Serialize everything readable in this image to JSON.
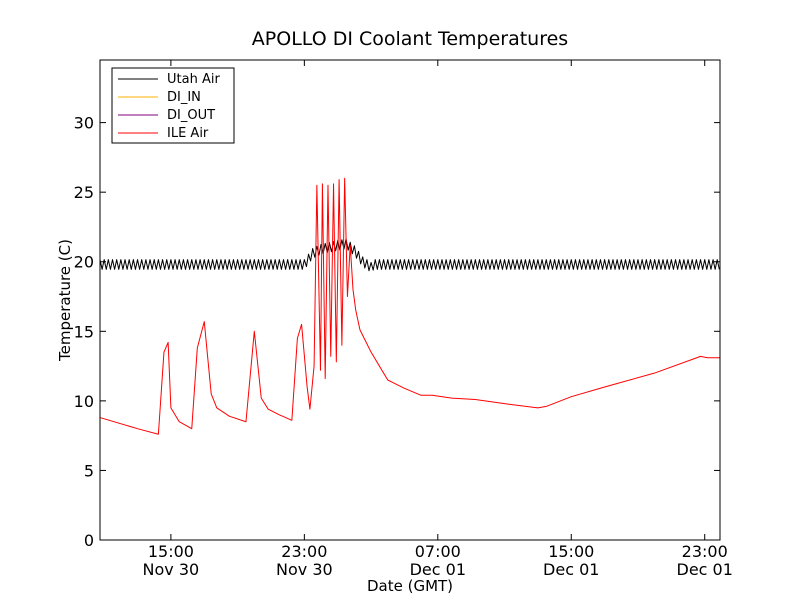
{
  "chart_data": {
    "type": "line",
    "title": "APOLLO DI Coolant Temperatures",
    "xlabel": "Date (GMT)",
    "ylabel": "Temperature (C)",
    "xlim": [
      "2014-11-30T10:45",
      "2014-12-01T23:55"
    ],
    "ylim": [
      0,
      34.5
    ],
    "yticks": [
      0,
      5,
      10,
      15,
      20,
      25,
      30
    ],
    "xticks": [
      {
        "t": "2014-11-30T15:00",
        "time": "15:00",
        "date": "Nov 30"
      },
      {
        "t": "2014-11-30T23:00",
        "time": "23:00",
        "date": "Nov 30"
      },
      {
        "t": "2014-12-01T07:00",
        "time": "07:00",
        "date": "Dec 01"
      },
      {
        "t": "2014-12-01T15:00",
        "time": "15:00",
        "date": "Dec 01"
      },
      {
        "t": "2014-12-01T23:00",
        "time": "23:00",
        "date": "Dec 01"
      }
    ],
    "legend_position": "top-left",
    "grid": false,
    "series": [
      {
        "name": "Utah Air",
        "color": "#000000",
        "style": "oscillating",
        "oscillation_amplitude": 0.35,
        "oscillation_period_hours": 0.25,
        "x": [
          "2014-11-30T10:45",
          "2014-11-30T23:00",
          "2014-11-30T23:30",
          "2014-12-01T00:00",
          "2014-12-01T01:30",
          "2014-12-01T02:00",
          "2014-12-01T02:30",
          "2014-12-01T03:00",
          "2014-12-01T03:10",
          "2014-12-01T23:55"
        ],
        "y": [
          19.8,
          19.8,
          20.6,
          20.9,
          21.3,
          20.8,
          20.0,
          19.6,
          19.8,
          19.8
        ]
      },
      {
        "name": "DI_IN",
        "color": "#ffb000",
        "x": [],
        "y": []
      },
      {
        "name": "DI_OUT",
        "color": "#800080",
        "x": [],
        "y": []
      },
      {
        "name": "ILE Air",
        "color": "#ff0000",
        "x": [
          "2014-11-30T10:45",
          "2014-11-30T13:00",
          "2014-11-30T14:15",
          "2014-11-30T14:35",
          "2014-11-30T14:50",
          "2014-11-30T15:00",
          "2014-11-30T15:30",
          "2014-11-30T16:15",
          "2014-11-30T16:35",
          "2014-11-30T17:00",
          "2014-11-30T17:25",
          "2014-11-30T17:45",
          "2014-11-30T18:30",
          "2014-11-30T19:30",
          "2014-11-30T20:00",
          "2014-11-30T20:25",
          "2014-11-30T20:50",
          "2014-11-30T21:30",
          "2014-11-30T22:15",
          "2014-11-30T22:35",
          "2014-11-30T22:50",
          "2014-11-30T23:10",
          "2014-11-30T23:20",
          "2014-11-30T23:35",
          "2014-11-30T23:45",
          "2014-11-30T23:58",
          "2014-12-01T00:05",
          "2014-12-01T00:15",
          "2014-12-01T00:25",
          "2014-12-01T00:35",
          "2014-12-01T00:45",
          "2014-12-01T00:55",
          "2014-12-01T01:05",
          "2014-12-01T01:15",
          "2014-12-01T01:25",
          "2014-12-01T01:35",
          "2014-12-01T01:45",
          "2014-12-01T01:55",
          "2014-12-01T02:05",
          "2014-12-01T02:20",
          "2014-12-01T03:00",
          "2014-12-01T04:00",
          "2014-12-01T05:00",
          "2014-12-01T06:00",
          "2014-12-01T06:40",
          "2014-12-01T07:50",
          "2014-12-01T09:15",
          "2014-12-01T11:00",
          "2014-12-01T13:00",
          "2014-12-01T13:30",
          "2014-12-01T15:00",
          "2014-12-01T17:00",
          "2014-12-01T20:00",
          "2014-12-01T22:45",
          "2014-12-01T23:10",
          "2014-12-01T23:55"
        ],
        "y": [
          8.8,
          8.0,
          7.6,
          13.5,
          14.2,
          9.5,
          8.5,
          8.0,
          13.8,
          15.7,
          10.5,
          9.5,
          8.9,
          8.5,
          15.0,
          10.2,
          9.4,
          9.0,
          8.6,
          14.5,
          15.5,
          11.0,
          9.4,
          12.5,
          25.5,
          12.2,
          25.6,
          11.6,
          25.5,
          13.2,
          25.6,
          12.8,
          25.9,
          14.0,
          26.0,
          17.5,
          21.2,
          18.0,
          16.5,
          15.1,
          13.5,
          11.5,
          10.9,
          10.4,
          10.4,
          10.2,
          10.1,
          9.8,
          9.5,
          9.6,
          10.3,
          11.0,
          12.0,
          13.2,
          13.1,
          13.1
        ]
      }
    ]
  }
}
